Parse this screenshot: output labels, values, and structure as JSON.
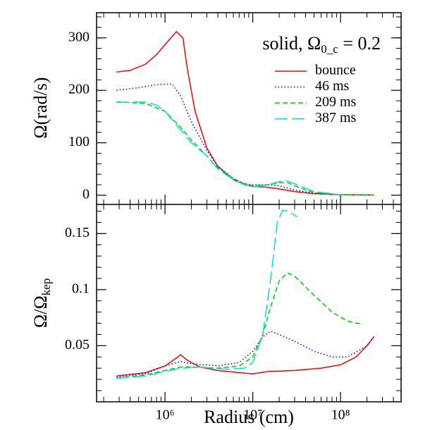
{
  "chart_data": [
    {
      "type": "line",
      "xscale": "log",
      "xlim": [
        166000,
        490000000
      ],
      "ylim": [
        -17.5,
        348
      ],
      "yticks": [
        0,
        100,
        200,
        300
      ],
      "ylabel": "Ω(rad/s)",
      "annotation": "solid, Ω",
      "annotation_sub": "0_c",
      "annotation_end": " = 0.2",
      "legend": "upper right",
      "series": [
        {
          "name": "bounce",
          "color": "#ff0000",
          "style": "solid",
          "x": [
            280000,
            400000,
            600000,
            800000,
            1100000,
            1350000,
            1600000,
            1800000,
            2200000,
            3000000,
            4000000,
            6000000,
            8000000,
            10000000,
            15000000,
            20000000,
            30000000,
            50000000,
            100000000,
            240000000
          ],
          "values": [
            235,
            238,
            250,
            268,
            295,
            312,
            300,
            240,
            160,
            90,
            55,
            30,
            20,
            17,
            15,
            12,
            7,
            3,
            1,
            0.5
          ]
        },
        {
          "name": "46 ms",
          "color": "#0000dd",
          "style": "dotted",
          "x": [
            280000,
            500000,
            800000,
            1200000,
            1500000,
            2000000,
            3000000,
            4000000,
            6000000,
            8000000,
            10000000,
            15000000,
            20000000,
            30000000,
            50000000,
            100000000,
            240000000
          ],
          "values": [
            200,
            205,
            211,
            212,
            190,
            140,
            85,
            55,
            32,
            22,
            20,
            20,
            18,
            10,
            4,
            1,
            0.5
          ]
        },
        {
          "name": "209 ms",
          "color": "#00cc00",
          "style": "dashed",
          "x": [
            280000,
            600000,
            1000000,
            1500000,
            2000000,
            3000000,
            4000000,
            6000000,
            8000000,
            10000000,
            15000000,
            20000000,
            25000000,
            30000000,
            50000000,
            100000000,
            240000000
          ],
          "values": [
            178,
            175,
            160,
            130,
            105,
            75,
            52,
            32,
            22,
            18,
            20,
            24,
            24,
            18,
            5,
            1,
            0.5
          ]
        },
        {
          "name": "387 ms",
          "color": "#00e0e0",
          "style": "longdash",
          "x": [
            280000,
            600000,
            800000,
            1000000,
            1500000,
            2000000,
            3000000,
            4000000,
            6000000,
            8000000,
            10000000,
            15000000,
            20000000,
            24000000,
            30000000,
            50000000,
            100000000
          ],
          "values": [
            177,
            178,
            172,
            160,
            125,
            100,
            75,
            50,
            30,
            20,
            16,
            20,
            26,
            28,
            22,
            7,
            1
          ]
        }
      ]
    },
    {
      "type": "line",
      "xscale": "log",
      "xlim": [
        166000,
        490000000
      ],
      "ylim": [
        0,
        0.176
      ],
      "xticks": [
        {
          "value": 1000000,
          "label": "10⁶"
        },
        {
          "value": 10000000,
          "label": "10⁷"
        },
        {
          "value": 100000000,
          "label": "10⁸"
        }
      ],
      "yticks": [
        0.05,
        0.1,
        0.15
      ],
      "xlabel": "Radius (cm)",
      "ylabel": "Ω/Ω",
      "ylabel_sub": "kep",
      "series": [
        {
          "name": "bounce",
          "color": "#ff0000",
          "style": "solid",
          "x": [
            280000,
            600000,
            1000000,
            1400000,
            1500000,
            1800000,
            2500000,
            4000000,
            7000000,
            10000000,
            15000000,
            30000000,
            60000000,
            100000000,
            150000000,
            200000000,
            240000000
          ],
          "values": [
            0.023,
            0.026,
            0.032,
            0.04,
            0.042,
            0.037,
            0.031,
            0.028,
            0.026,
            0.025,
            0.027,
            0.028,
            0.03,
            0.033,
            0.04,
            0.05,
            0.058
          ]
        },
        {
          "name": "46 ms",
          "color": "#0000dd",
          "style": "dotted",
          "x": [
            280000,
            600000,
            1000000,
            1500000,
            2000000,
            4000000,
            7000000,
            10000000,
            13000000,
            16000000,
            20000000,
            30000000,
            50000000,
            80000000,
            120000000,
            200000000,
            240000000
          ],
          "values": [
            0.022,
            0.025,
            0.032,
            0.036,
            0.034,
            0.032,
            0.035,
            0.045,
            0.058,
            0.063,
            0.06,
            0.054,
            0.045,
            0.04,
            0.04,
            0.05,
            0.058
          ]
        },
        {
          "name": "209 ms",
          "color": "#00cc00",
          "style": "dashed",
          "x": [
            280000,
            600000,
            1000000,
            1500000,
            2500000,
            4000000,
            7000000,
            10000000,
            13000000,
            16000000,
            20000000,
            25000000,
            30000000,
            50000000,
            80000000,
            120000000,
            180000000
          ],
          "values": [
            0.021,
            0.024,
            0.028,
            0.031,
            0.031,
            0.03,
            0.032,
            0.04,
            0.06,
            0.085,
            0.108,
            0.115,
            0.112,
            0.095,
            0.08,
            0.072,
            0.069
          ]
        },
        {
          "name": "387 ms",
          "color": "#00e0e0",
          "style": "longdash",
          "x": [
            280000,
            600000,
            1000000,
            1500000,
            2500000,
            5000000,
            8000000,
            10000000,
            13000000,
            16000000,
            19000000,
            22000000,
            25000000,
            32000000
          ],
          "values": [
            0.021,
            0.023,
            0.027,
            0.03,
            0.031,
            0.029,
            0.03,
            0.035,
            0.06,
            0.11,
            0.16,
            0.171,
            0.17,
            0.165
          ]
        }
      ]
    }
  ]
}
